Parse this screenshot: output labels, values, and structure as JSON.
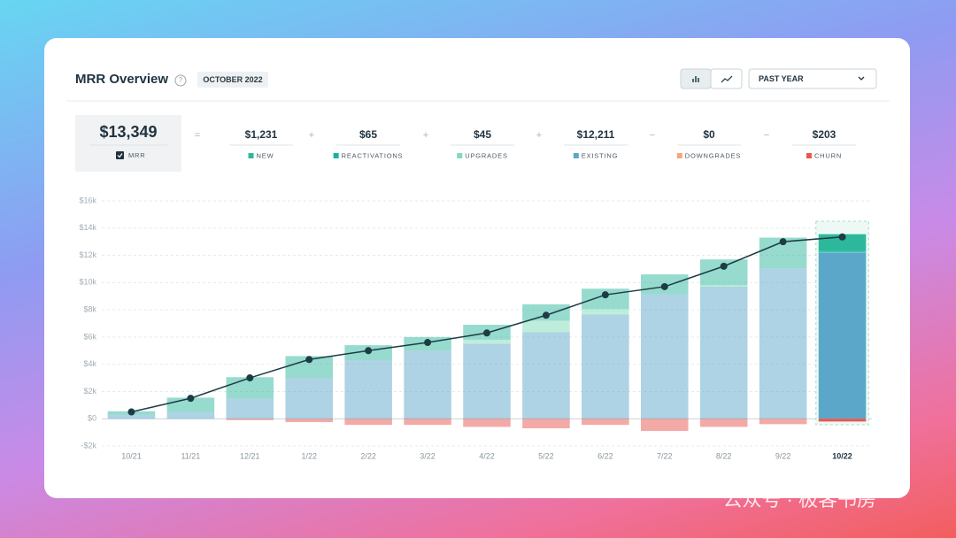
{
  "header": {
    "title": "MRR Overview",
    "badge": "OCTOBER 2022",
    "dropdown": "PAST YEAR"
  },
  "summary": {
    "total": "$13,349",
    "items": [
      {
        "op": "=",
        "value": "$1,231"
      },
      {
        "op": "+",
        "value": "$65"
      },
      {
        "op": "+",
        "value": "$45"
      },
      {
        "op": "+",
        "value": "$12,211"
      },
      {
        "op": "−",
        "value": "$0"
      },
      {
        "op": "−",
        "value": "$203"
      }
    ]
  },
  "chart_data": {
    "type": "bar",
    "stacked": true,
    "categories": [
      "10/21",
      "11/21",
      "12/21",
      "1/22",
      "2/22",
      "3/22",
      "4/22",
      "5/22",
      "6/22",
      "7/22",
      "8/22",
      "9/22",
      "10/22"
    ],
    "series": [
      {
        "name": "NEW",
        "color": "#2db89b",
        "values": [
          250,
          1050,
          1550,
          1600,
          1100,
          1000,
          1100,
          1200,
          1500,
          1450,
          1900,
          2250,
          1231
        ]
      },
      {
        "name": "REACTIVATIONS",
        "color": "#17b3a3",
        "values": [
          0,
          0,
          0,
          0,
          0,
          0,
          0,
          0,
          0,
          0,
          0,
          0,
          65
        ]
      },
      {
        "name": "UPGRADES",
        "color": "#7fdbb9",
        "values": [
          0,
          0,
          0,
          0,
          0,
          0,
          300,
          850,
          400,
          0,
          100,
          0,
          45
        ]
      },
      {
        "name": "EXISTING",
        "color": "#5ba7c9",
        "values": [
          300,
          500,
          1500,
          3000,
          4300,
          5000,
          5500,
          6350,
          7650,
          9150,
          9700,
          11050,
          12211
        ]
      },
      {
        "name": "DOWNGRADES",
        "color": "#f7a57b",
        "values": [
          0,
          0,
          0,
          0,
          0,
          0,
          0,
          0,
          0,
          0,
          0,
          0,
          0
        ]
      },
      {
        "name": "CHURN",
        "color": "#e8564f",
        "values": [
          0,
          0,
          -100,
          -250,
          -450,
          -450,
          -600,
          -700,
          -450,
          -900,
          -600,
          -400,
          -203
        ]
      }
    ],
    "line": {
      "name": "MRR",
      "color": "#1d3c45",
      "values": [
        500,
        1500,
        3000,
        4350,
        5000,
        5600,
        6300,
        7600,
        9100,
        9700,
        11200,
        13000,
        13349
      ]
    },
    "ylim": [
      -2000,
      16000
    ],
    "yticks": [
      {
        "value": -2000,
        "label": "-$2k"
      },
      {
        "value": 0,
        "label": "$0"
      },
      {
        "value": 2000,
        "label": "$2k"
      },
      {
        "value": 4000,
        "label": "$4k"
      },
      {
        "value": 6000,
        "label": "$6k"
      },
      {
        "value": 8000,
        "label": "$8k"
      },
      {
        "value": 10000,
        "label": "$10k"
      },
      {
        "value": 12000,
        "label": "$12k"
      },
      {
        "value": 14000,
        "label": "$14k"
      },
      {
        "value": 16000,
        "label": "$16k"
      }
    ],
    "grid": true
  },
  "watermark": "公众号 · 极客书房"
}
